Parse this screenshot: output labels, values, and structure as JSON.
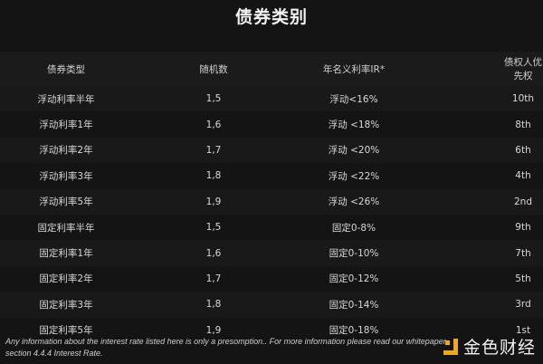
{
  "title": "债券类别",
  "table": {
    "headers": [
      "债券类型",
      "随机数",
      "年名义利率IR*",
      "债权人优先权"
    ],
    "rows": [
      [
        "浮动利率半年",
        "1,5",
        "浮动<16%",
        "10th"
      ],
      [
        "浮动利率1年",
        "1,6",
        "浮动 <18%",
        "8th"
      ],
      [
        "浮动利率2年",
        "1,7",
        "浮动 <20%",
        "6th"
      ],
      [
        "浮动利率3年",
        "1,8",
        "浮动 <22%",
        "4th"
      ],
      [
        "浮动利率5年",
        "1,9",
        "浮动 <26%",
        "2nd"
      ],
      [
        "固定利率半年",
        "1,5",
        "固定0-8%",
        "9th"
      ],
      [
        "固定利率1年",
        "1,6",
        "固定0-10%",
        "7th"
      ],
      [
        "固定利率2年",
        "1,7",
        "固定0-12%",
        "5th"
      ],
      [
        "固定利率3年",
        "1,8",
        "固定0-14%",
        "3rd"
      ],
      [
        "固定利率5年",
        "1,9",
        "固定0-18%",
        "1st"
      ]
    ]
  },
  "footnote": "Any information about the interest rate listed here is only a presomption.. For more information please read our whitepaper, section 4.4.4 Interest Rate.",
  "watermark": {
    "text": "金色财经",
    "color": "#f0a81c"
  }
}
